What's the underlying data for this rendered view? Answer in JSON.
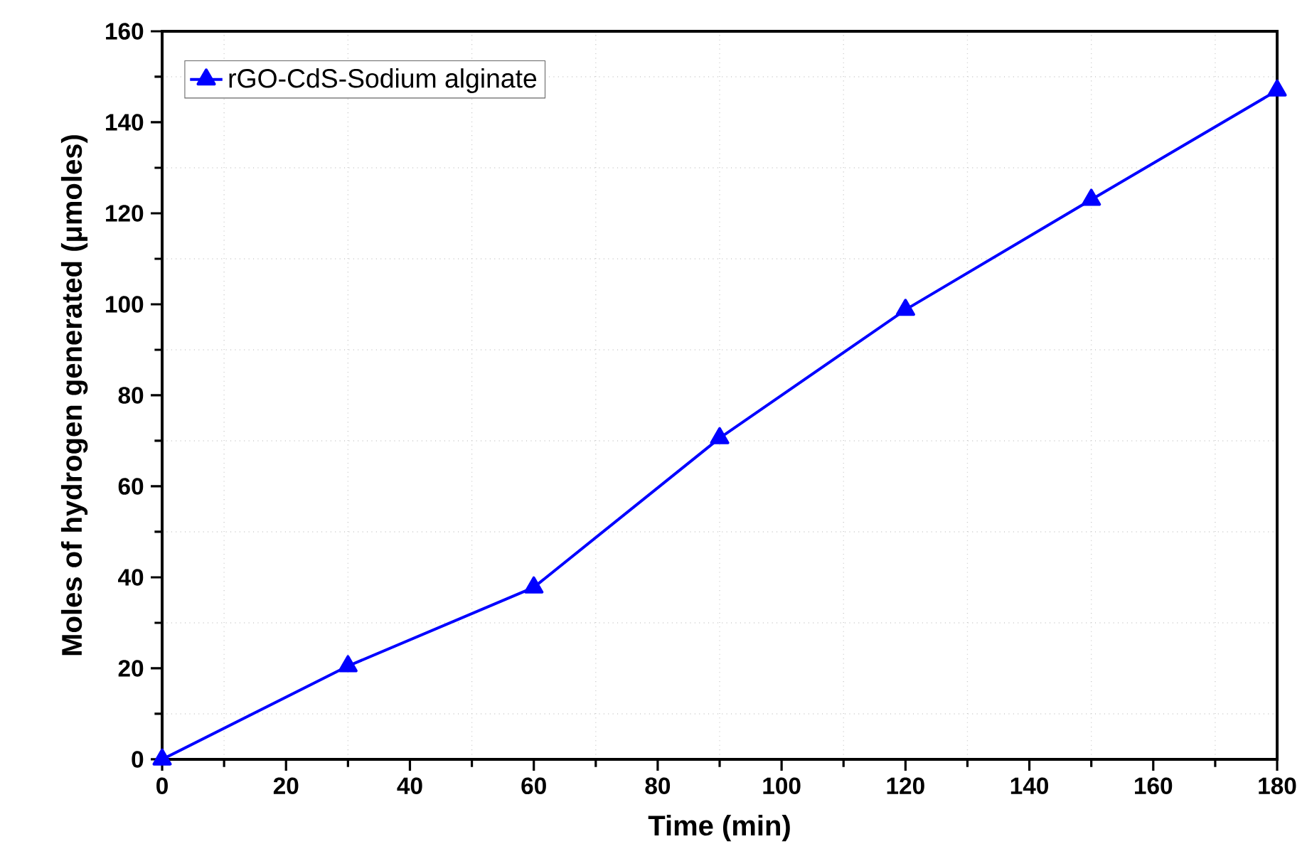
{
  "chart_data": {
    "type": "line",
    "xlabel": "Time (min)",
    "ylabel": "Moles of hydrogen generated (μmoles)",
    "x": [
      0,
      30,
      60,
      90,
      120,
      150,
      180
    ],
    "series": [
      {
        "name": "rGO-CdS-Sodium alginate",
        "color": "#0000ff",
        "values": [
          0,
          20.5,
          37.8,
          70.6,
          98.8,
          123,
          147
        ]
      }
    ],
    "xlim": [
      0,
      180
    ],
    "xticks": [
      0,
      {
        "value": 10,
        "label": null
      },
      20,
      {
        "value": 30,
        "label": null
      },
      40,
      {
        "value": 50,
        "label": null
      },
      60,
      {
        "value": 70,
        "label": null
      },
      80,
      {
        "value": 90,
        "label": null
      },
      100,
      {
        "value": 110,
        "label": null
      },
      120,
      {
        "value": 130,
        "label": null
      },
      140,
      {
        "value": 150,
        "label": null
      },
      160,
      {
        "value": 170,
        "label": null
      },
      180
    ],
    "ylim": [
      0,
      160
    ],
    "yticks": [
      0,
      {
        "value": 10,
        "label": null
      },
      20,
      {
        "value": 30,
        "label": null
      },
      40,
      {
        "value": 50,
        "label": null
      },
      60,
      {
        "value": 70,
        "label": null
      },
      80,
      {
        "value": 90,
        "label": null
      },
      100,
      {
        "value": 110,
        "label": null
      },
      120,
      {
        "value": 130,
        "label": null
      },
      140,
      {
        "value": 150,
        "label": null
      },
      160
    ],
    "grid": true,
    "legend": "top left",
    "marker": "triangle",
    "line_style": "solid"
  }
}
